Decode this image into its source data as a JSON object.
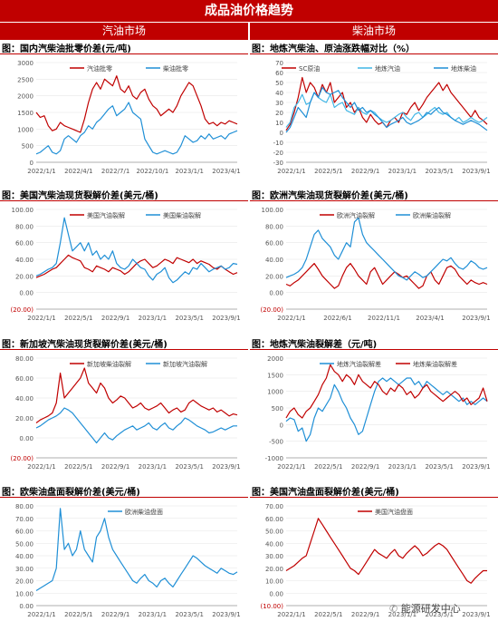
{
  "header": {
    "title": "成品油价格趋势",
    "left": "汽油市场",
    "right": "柴油市场"
  },
  "watermark": "能源研发中心",
  "chart_data": [
    {
      "id": "c1",
      "type": "line",
      "title": "图：国内汽柴油批零价差(元/吨)",
      "x_ticks": [
        "2022/1/1",
        "2022/4/1",
        "2022/7/1",
        "2022/10/1",
        "2023/1/1",
        "2023/4/1"
      ],
      "y_ticks": [
        "0",
        "500",
        "1000",
        "1500",
        "2000",
        "2500",
        "3000"
      ],
      "ylim": [
        0,
        3000
      ],
      "series": [
        {
          "name": "汽油批零",
          "color": "#c00000",
          "values": [
            1500,
            1350,
            1400,
            1100,
            950,
            1000,
            1200,
            1100,
            1050,
            1000,
            950,
            900,
            1300,
            1800,
            2200,
            2400,
            2200,
            2500,
            2400,
            2300,
            2600,
            2200,
            2100,
            2300,
            2000,
            1900,
            2100,
            2200,
            1900,
            1700,
            1600,
            1400,
            1500,
            1600,
            1500,
            1700,
            2000,
            2200,
            2400,
            2300,
            2000,
            1700,
            1300,
            1150,
            1200,
            1100,
            1200,
            1150,
            1250,
            1200,
            1150
          ]
        },
        {
          "name": "柴油批零",
          "color": "#1f8fd6",
          "values": [
            250,
            300,
            400,
            500,
            300,
            250,
            350,
            700,
            800,
            700,
            600,
            800,
            900,
            1100,
            1000,
            1200,
            1300,
            1450,
            1600,
            1700,
            1400,
            1500,
            1600,
            1800,
            1500,
            1400,
            1300,
            700,
            500,
            300,
            250,
            300,
            350,
            300,
            250,
            300,
            500,
            800,
            700,
            600,
            650,
            800,
            700,
            850,
            700,
            750,
            800,
            700,
            850,
            900,
            950
          ]
        }
      ]
    },
    {
      "id": "c2",
      "type": "line",
      "title": "图：地炼汽柴油、原油涨跌幅对比（%）",
      "x_ticks": [
        "2022/1/1",
        "2022/5/1",
        "2022/9/1",
        "2023/1/1",
        "2023/5/1",
        "2023/9/1"
      ],
      "y_ticks": [
        "-30",
        "-20",
        "-10",
        "0",
        "10",
        "20",
        "30",
        "40",
        "50",
        "60",
        "70"
      ],
      "ylim": [
        -30,
        70
      ],
      "series": [
        {
          "name": "SC原油",
          "color": "#c00000",
          "values": [
            2,
            8,
            20,
            35,
            55,
            40,
            50,
            45,
            35,
            48,
            40,
            50,
            30,
            35,
            40,
            25,
            30,
            20,
            25,
            15,
            10,
            18,
            12,
            8,
            10,
            5,
            12,
            15,
            10,
            20,
            18,
            25,
            30,
            22,
            28,
            35,
            40,
            45,
            50,
            42,
            48,
            40,
            35,
            30,
            25,
            20,
            15,
            22,
            15,
            12,
            8
          ]
        },
        {
          "name": "地炼汽油",
          "color": "#41b6e6",
          "values": [
            5,
            10,
            25,
            30,
            38,
            28,
            30,
            40,
            35,
            32,
            30,
            38,
            25,
            28,
            30,
            22,
            20,
            18,
            25,
            20,
            18,
            22,
            20,
            15,
            12,
            10,
            12,
            15,
            18,
            20,
            15,
            12,
            18,
            20,
            15,
            18,
            22,
            25,
            20,
            18,
            20,
            15,
            12,
            15,
            10,
            12,
            15,
            12,
            10,
            12,
            15
          ]
        },
        {
          "name": "地炼柴油",
          "color": "#1f8fd6",
          "values": [
            0,
            5,
            15,
            25,
            20,
            15,
            30,
            40,
            35,
            45,
            40,
            38,
            40,
            42,
            35,
            30,
            25,
            30,
            22,
            25,
            20,
            22,
            18,
            15,
            10,
            5,
            8,
            10,
            12,
            15,
            10,
            8,
            10,
            12,
            15,
            20,
            18,
            22,
            25,
            20,
            18,
            15,
            12,
            10,
            8,
            10,
            12,
            10,
            8,
            5,
            2
          ]
        }
      ]
    },
    {
      "id": "c3",
      "type": "line",
      "title": "图：美国汽柴油现货裂解价差(美元/桶)",
      "x_ticks": [
        "2022/1/1",
        "2022/5/1",
        "2022/9/1",
        "2023/1/1",
        "2023/5/1",
        "2023/9/1"
      ],
      "y_ticks": [
        "(20.00)",
        "0.00",
        "20.00",
        "40.00",
        "60.00",
        "80.00",
        "100.00"
      ],
      "ylim": [
        -20,
        100
      ],
      "series": [
        {
          "name": "美国汽油裂解",
          "color": "#c00000",
          "values": [
            18,
            20,
            22,
            25,
            28,
            30,
            35,
            40,
            45,
            42,
            40,
            38,
            30,
            28,
            25,
            32,
            30,
            28,
            25,
            30,
            28,
            26,
            22,
            25,
            30,
            35,
            38,
            40,
            35,
            30,
            32,
            36,
            40,
            38,
            35,
            42,
            40,
            38,
            36,
            40,
            35,
            38,
            36,
            34,
            30,
            28,
            32,
            28,
            25,
            22,
            24
          ]
        },
        {
          "name": "美国柴油裂解",
          "color": "#1f8fd6",
          "values": [
            20,
            22,
            25,
            28,
            30,
            35,
            60,
            90,
            70,
            50,
            55,
            60,
            50,
            60,
            45,
            50,
            40,
            45,
            40,
            50,
            35,
            30,
            28,
            32,
            40,
            35,
            30,
            28,
            20,
            15,
            22,
            25,
            30,
            18,
            12,
            15,
            20,
            25,
            22,
            30,
            28,
            35,
            30,
            25,
            28,
            30,
            32,
            28,
            30,
            35,
            34
          ]
        }
      ]
    },
    {
      "id": "c4",
      "type": "line",
      "title": "图：欧洲汽柴油现货裂解价差(美元/桶)",
      "x_ticks": [
        "2022/1/1",
        "2022/6/1",
        "2022/11/1",
        "2023/4/1",
        "2023/9/1"
      ],
      "y_ticks": [
        "(20.00)",
        "0.00",
        "20.00",
        "40.00",
        "60.00",
        "80.00",
        "100.00"
      ],
      "ylim": [
        -20,
        100
      ],
      "series": [
        {
          "name": "欧洲汽油裂解",
          "color": "#c00000",
          "values": [
            10,
            8,
            12,
            15,
            20,
            25,
            30,
            35,
            28,
            20,
            15,
            10,
            5,
            8,
            20,
            30,
            35,
            28,
            20,
            15,
            10,
            25,
            30,
            20,
            10,
            15,
            20,
            25,
            22,
            18,
            20,
            15,
            10,
            5,
            8,
            20,
            25,
            15,
            10,
            20,
            30,
            32,
            28,
            20,
            15,
            10,
            15,
            12,
            10,
            12,
            10
          ]
        },
        {
          "name": "欧洲柴油裂解",
          "color": "#1f8fd6",
          "values": [
            18,
            20,
            22,
            25,
            30,
            40,
            55,
            70,
            75,
            65,
            60,
            55,
            45,
            40,
            50,
            60,
            55,
            85,
            90,
            70,
            60,
            55,
            50,
            45,
            40,
            35,
            30,
            25,
            20,
            18,
            15,
            20,
            25,
            22,
            18,
            20,
            25,
            30,
            35,
            40,
            38,
            42,
            35,
            30,
            28,
            32,
            38,
            35,
            30,
            28,
            30
          ]
        }
      ]
    },
    {
      "id": "c5",
      "type": "line",
      "title": "图：新加坡汽柴油现货裂解价差(美元/桶)",
      "x_ticks": [
        "2022/1/1",
        "2022/5/1",
        "2022/9/1",
        "2023/1/1",
        "2023/5/1",
        "2023/9/1"
      ],
      "y_ticks": [
        "(20.00)",
        "0.00",
        "20.00",
        "40.00",
        "60.00",
        "80.00"
      ],
      "ylim": [
        -20,
        80
      ],
      "series": [
        {
          "name": "新加坡柴油裂解",
          "color": "#c00000",
          "values": [
            15,
            18,
            20,
            22,
            25,
            35,
            65,
            40,
            45,
            50,
            55,
            60,
            70,
            55,
            50,
            45,
            55,
            50,
            40,
            35,
            38,
            42,
            40,
            35,
            30,
            32,
            35,
            30,
            28,
            30,
            32,
            35,
            30,
            25,
            28,
            30,
            26,
            28,
            35,
            38,
            35,
            32,
            30,
            28,
            30,
            26,
            28,
            25,
            22,
            24,
            23
          ]
        },
        {
          "name": "新加坡汽油裂解",
          "color": "#1f8fd6",
          "values": [
            10,
            12,
            15,
            18,
            20,
            22,
            25,
            30,
            28,
            25,
            20,
            15,
            10,
            5,
            0,
            -5,
            0,
            5,
            0,
            -2,
            2,
            5,
            8,
            10,
            12,
            8,
            10,
            12,
            15,
            10,
            8,
            12,
            15,
            10,
            8,
            12,
            15,
            20,
            18,
            15,
            12,
            10,
            8,
            5,
            6,
            8,
            10,
            8,
            10,
            12,
            12
          ]
        }
      ]
    },
    {
      "id": "c6",
      "type": "line",
      "title": "图：地炼汽柴油裂解差（元/吨)",
      "x_ticks": [
        "2022/1/1",
        "2022/5/1",
        "2022/9/1",
        "2023/1/1",
        "2023/5/1",
        "2023/9/1"
      ],
      "y_ticks": [
        "-1000",
        "-500",
        "0",
        "500",
        "1000",
        "1500",
        "2000"
      ],
      "ylim": [
        -1000,
        2000
      ],
      "series": [
        {
          "name": "地炼汽油裂解差",
          "color": "#1f8fd6",
          "values": [
            100,
            200,
            150,
            -200,
            -100,
            -500,
            -300,
            200,
            500,
            400,
            600,
            800,
            1200,
            1000,
            700,
            500,
            200,
            0,
            -300,
            -200,
            200,
            600,
            1000,
            1300,
            1400,
            1300,
            1400,
            1300,
            1200,
            1300,
            1400,
            1400,
            1200,
            1300,
            1100,
            1300,
            1200,
            1100,
            1000,
            900,
            1000,
            900,
            800,
            700,
            800,
            600,
            700,
            600,
            700,
            800,
            700
          ]
        },
        {
          "name": "地炼柴油裂解差",
          "color": "#c00000",
          "values": [
            200,
            400,
            500,
            300,
            200,
            400,
            500,
            700,
            900,
            1200,
            1400,
            1800,
            1600,
            1500,
            1300,
            1500,
            1400,
            1200,
            1500,
            1300,
            1200,
            1100,
            1300,
            1200,
            1000,
            900,
            1100,
            1000,
            1200,
            1100,
            900,
            1000,
            800,
            900,
            1100,
            1200,
            1000,
            900,
            800,
            700,
            800,
            900,
            1000,
            900,
            700,
            800,
            600,
            700,
            800,
            1100,
            700
          ]
        }
      ]
    },
    {
      "id": "c7",
      "type": "line",
      "title": "图：欧柴油盘面裂解价差(美元/桶)",
      "x_ticks": [
        "2022/1/1",
        "2022/5/1",
        "2022/9/1",
        "2023/1/1",
        "2023/5/1",
        "2023/9/1"
      ],
      "y_ticks": [
        "0.00",
        "10.00",
        "20.00",
        "30.00",
        "40.00",
        "50.00",
        "60.00",
        "70.00",
        "80.00"
      ],
      "ylim": [
        0,
        80
      ],
      "series": [
        {
          "name": "欧洲柴油盘面",
          "color": "#1f8fd6",
          "values": [
            12,
            14,
            16,
            18,
            20,
            30,
            78,
            45,
            50,
            40,
            45,
            60,
            45,
            40,
            35,
            55,
            60,
            70,
            55,
            45,
            40,
            35,
            30,
            25,
            20,
            18,
            22,
            25,
            20,
            18,
            15,
            20,
            22,
            18,
            15,
            20,
            25,
            30,
            35,
            40,
            38,
            35,
            32,
            30,
            28,
            26,
            30,
            28,
            26,
            25,
            27
          ]
        }
      ]
    },
    {
      "id": "c8",
      "type": "line",
      "title": "图：美国汽油盘面裂解价差(美元/桶)",
      "x_ticks": [
        "2022/1/1",
        "2022/5/1",
        "2022/9/1",
        "2023/1/1",
        "2023/5/1",
        "2023/9/1"
      ],
      "y_ticks": [
        "(10.00)",
        "0.00",
        "10.00",
        "20.00",
        "30.00",
        "40.00",
        "50.00",
        "60.00",
        "70.00"
      ],
      "ylim": [
        -10,
        70
      ],
      "series": [
        {
          "name": "美国汽油盘面",
          "color": "#c00000",
          "values": [
            18,
            20,
            22,
            25,
            28,
            30,
            40,
            50,
            60,
            55,
            50,
            45,
            40,
            35,
            30,
            25,
            20,
            18,
            15,
            20,
            25,
            30,
            35,
            32,
            30,
            28,
            32,
            35,
            30,
            28,
            32,
            35,
            38,
            35,
            30,
            32,
            35,
            38,
            40,
            38,
            35,
            30,
            25,
            20,
            15,
            10,
            8,
            12,
            15,
            18,
            18
          ]
        }
      ]
    }
  ]
}
